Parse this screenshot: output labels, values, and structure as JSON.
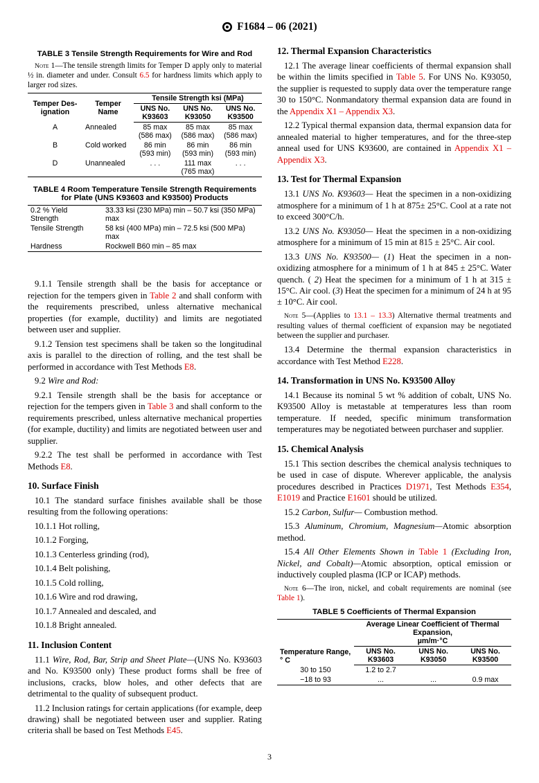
{
  "header": {
    "designation": "F1684 – 06 (2021)"
  },
  "left": {
    "table3": {
      "title": "TABLE 3 Tensile Strength Requirements for Wire and Rod",
      "note": "NOTE 1—The tensile strength limits for Temper D apply only to material ½ in. diameter and under. Consult ",
      "note_link": "6.5",
      "note_end": " for hardness limits which apply to larger rod sizes.",
      "h_td": "Temper Des-\nignation",
      "h_tn": "Temper\nName",
      "h_ts": "Tensile Strength ksi (MPa)",
      "h_u1": "UNS No.\nK93603",
      "h_u2": "UNS No.\nK93050",
      "h_u3": "UNS No.\nK93500",
      "rows": [
        {
          "d": "A",
          "n": "Annealed",
          "v1": "85 max\n(586 max)",
          "v2": "85 max\n(586 max)",
          "v3": "85 max\n(586 max)"
        },
        {
          "d": "B",
          "n": "Cold worked",
          "v1": "86 min\n(593 min)",
          "v2": "86 min\n(593 min)",
          "v3": "86 min\n(593 min)"
        },
        {
          "d": "D",
          "n": "Unannealed",
          "v1": ". . .",
          "v2": "111 max\n(765 max)",
          "v3": ". . ."
        }
      ]
    },
    "table4": {
      "title": "TABLE 4 Room Temperature Tensile Strength Requirements for Plate (UNS K93603 and K93500) Products",
      "r1a": "0.2 % Yield Strength",
      "r1b": "33.33 ksi (230 MPa) min – 50.7 ksi (350 MPa) max",
      "r2a": "Tensile Strength",
      "r2b": "58 ksi (400 MPa) min – 72.5 ksi (500 MPa) max",
      "r3a": "Hardness",
      "r3b": "Rockwell B60 min – 85 max"
    },
    "p911a": "9.1.1 Tensile strength shall be the basis for acceptance or rejection for the tempers given in ",
    "p911_link": "Table 2",
    "p911b": " and shall conform with the requirements prescribed, unless alternative mechanical properties (for example, ductility) and limits are negotiated between user and supplier.",
    "p912a": "9.1.2 Tension test specimens shall be taken so the longitudinal axis is parallel to the direction of rolling, and the test shall be performed in accordance with Test Methods ",
    "p912_link": "E8",
    "p912b": ".",
    "p92": "9.2 Wire and Rod:",
    "p921a": "9.2.1 Tensile strength shall be the basis for acceptance or rejection for the tempers given in ",
    "p921_link": "Table 3",
    "p921b": " and shall conform to the requirements prescribed, unless alternative mechanical properties (for example, ductility) and limits are negotiated between user and supplier.",
    "p922a": "9.2.2 The test shall be performed in accordance with Test Methods ",
    "p922_link": "E8",
    "p922b": ".",
    "s10": "10. Surface Finish",
    "p101": "10.1 The standard surface finishes available shall be those resulting from the following operations:",
    "p1011": "10.1.1 Hot rolling,",
    "p1012": "10.1.2 Forging,",
    "p1013": "10.1.3 Centerless grinding (rod),",
    "p1014": "10.1.4 Belt polishing,",
    "p1015": "10.1.5 Cold rolling,",
    "p1016": "10.1.6 Wire and rod drawing,",
    "p1017": "10.1.7 Annealed and descaled, and",
    "p1018": "10.1.8 Bright annealed.",
    "s11": "11. Inclusion Content",
    "p111_lead": "11.1 ",
    "p111_it": "Wire, Rod, Bar, Strip and Sheet Plate—",
    "p111": "(UNS No. K93603 and No. K93500 only) These product forms shall be free of inclusions, cracks, blow holes, and other defects that are detrimental to the quality of subsequent product.",
    "p112a": "11.2 Inclusion ratings for certain applications (for example, deep drawing) shall be negotiated between user and supplier. Rating criteria shall be based on Test Methods ",
    "p112_link": "E45",
    "p112b": "."
  },
  "right": {
    "s12": "12. Thermal Expansion Characteristics",
    "p121a": "12.1 The average linear coefficients of thermal expansion shall be within the limits specified in ",
    "p121_link1": "Table 5",
    "p121b": ". For UNS No. K93050, the supplier is requested to supply data over the temperature range 30 to 150°C. Nonmandatory thermal expansion data are found in the ",
    "p121_link2": "Appendix X1 – Appendix X3",
    "p121c": ".",
    "p122a": "12.2 Typical thermal expansion data, thermal expansion data for annealed material to higher temperatures, and for the three-step anneal used for UNS K93600, are contained in ",
    "p122_link": "Appendix X1 – Appendix X3",
    "p122b": ".",
    "s13": "13. Test for Thermal Expansion",
    "p131_lead": "13.1 ",
    "p131_it": "UNS No. K93603— ",
    "p131": "Heat the specimen in a non-oxidizing atmosphere for a minimum of 1 h at 875± 25°C. Cool at a rate not to exceed 300°C/h.",
    "p132_lead": "13.2 ",
    "p132_it": "UNS No. K93050— ",
    "p132": "Heat the specimen in a non-oxidizing atmosphere for a minimum of 15 min at 815 ± 25°C. Air cool.",
    "p133_lead": "13.3 ",
    "p133_it": "UNS No. K93500— ",
    "p133": "(1) Heat the specimen in a non-oxidizing atmosphere for a minimum of 1 h at 845 ± 25°C. Water quench. ( 2) Heat the specimen for a minimum of 1 h at 315 ± 15°C. Air cool. (3) Heat the specimen for a minimum of 24 h at 95 ± 10°C. Air cool.",
    "note5a": "NOTE 5—(Applies to ",
    "note5_link": "13.1 – 13.3",
    "note5b": ") Alternative thermal treatments and resulting values of thermal coefficient of expansion may be negotiated between the supplier and purchaser.",
    "p134a": "13.4 Determine the thermal expansion characteristics in accordance with Test Method ",
    "p134_link": "E228",
    "p134b": ".",
    "s14": "14. Transformation in UNS No. K93500 Alloy",
    "p141": "14.1 Because its nominal 5 wt % addition of cobalt, UNS No. K93500 Alloy is metastable at temperatures less than room temperature. If needed, specific minimum transformation temperatures may be negotiated between purchaser and supplier.",
    "s15": "15. Chemical Analysis",
    "p151a": "15.1 This section describes the chemical analysis techniques to be used in case of dispute. Wherever applicable, the analysis procedures described in Practices ",
    "p151_l1": "D1971",
    "p151b": ", Test Methods ",
    "p151_l2": "E354",
    "p151c": ", ",
    "p151_l3": "E1019",
    "p151d": " and Practice ",
    "p151_l4": "E1601",
    "p151e": " should be utilized.",
    "p152_lead": "15.2 ",
    "p152_it": "Carbon, Sulfur— ",
    "p152": "Combustion method.",
    "p153_lead": "15.3 ",
    "p153_it": "Aluminum, Chromium, Magnesium—",
    "p153": "Atomic absorption method.",
    "p154_lead": "15.4 ",
    "p154_it": "All Other Elements Shown in ",
    "p154_link": "Table 1",
    "p154_it2": " (Excluding Iron, Nickel, and Cobalt)—",
    "p154": "Atomic absorption, optical emission or inductively coupled plasma (ICP or ICAP) methods.",
    "note6a": "NOTE 6—The iron, nickel, and cobalt requirements are nominal (see ",
    "note6_link": "Table 1",
    "note6b": ").",
    "table5": {
      "title": "TABLE 5 Coefficients of Thermal Expansion",
      "h_tr": "Temperature Range,° C",
      "h_span": "Average Linear Coefficient of Thermal Expansion,\nµm/m·°C",
      "h_u1": "UNS No.\nK93603",
      "h_u2": "UNS No.\nK93050",
      "h_u3": "UNS No.\nK93500",
      "r1": {
        "t": "30 to 150",
        "v1": "1.2 to 2.7",
        "v2": "",
        "v3": ""
      },
      "r2": {
        "t": "−18 to 93",
        "v1": "...",
        "v2": "...",
        "v3": "0.9 max"
      }
    }
  },
  "page": "3"
}
